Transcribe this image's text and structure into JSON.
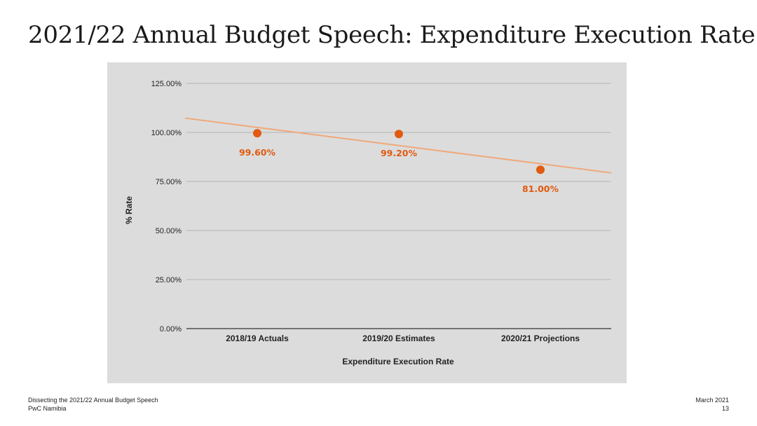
{
  "slide": {
    "title": "2021/22 Annual Budget Speech: Expenditure Execution Rate"
  },
  "footer": {
    "left_line1": "Dissecting the 2021/22 Annual Budget Speech",
    "left_line2": "PwC Namibia",
    "right_line1": "March 2021",
    "right_line2": "13"
  },
  "colors": {
    "marker": "#e15a10",
    "label": "#e15a10",
    "trendline": "#f0a878",
    "panel": "#dcdcdc",
    "grid": "#a8a8a8",
    "axis": "#333333"
  },
  "chart_data": {
    "type": "scatter",
    "title": "",
    "xlabel": "Expenditure Execution Rate",
    "ylabel": "% Rate",
    "categories": [
      "2018/19 Actuals",
      "2019/20 Estimates",
      "2020/21 Projections"
    ],
    "values": [
      99.6,
      99.2,
      81.0
    ],
    "data_labels": [
      "99.60%",
      "99.20%",
      "81.00%"
    ],
    "ylim": [
      0,
      125
    ],
    "yticks": [
      0,
      25,
      50,
      75,
      100,
      125
    ],
    "ytick_labels": [
      "0.00%",
      "25.00%",
      "50.00%",
      "75.00%",
      "100.00%",
      "125.00%"
    ],
    "trendline": {
      "type": "linear",
      "start_value": 107.3,
      "end_value": 79.4
    },
    "grid": true,
    "legend": "none"
  }
}
